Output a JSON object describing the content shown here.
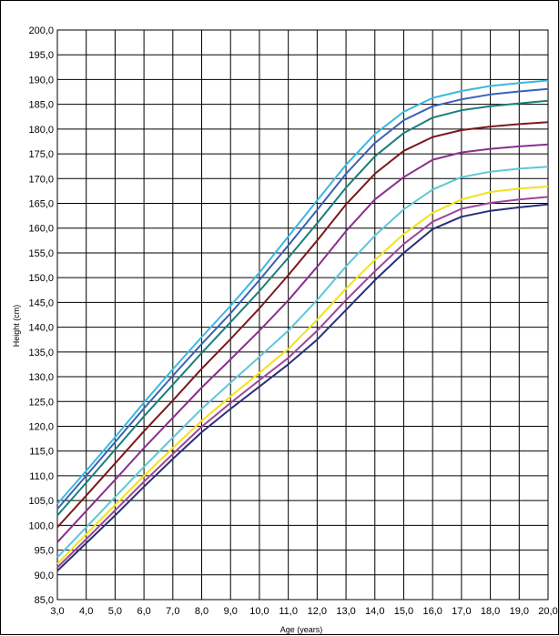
{
  "chart_data": {
    "type": "line",
    "xlabel": "Age (years)",
    "ylabel": "Height (cm)",
    "xlim": [
      3,
      20
    ],
    "ylim": [
      85,
      200
    ],
    "x_ticks": [
      "3,0",
      "4,0",
      "5,0",
      "6,0",
      "7,0",
      "8,0",
      "9,0",
      "10,0",
      "11,0",
      "12,0",
      "13,0",
      "14,0",
      "15,0",
      "16,0",
      "17,0",
      "18,0",
      "19,0",
      "20,0"
    ],
    "y_ticks": [
      "85,0",
      "90,0",
      "95,0",
      "100,0",
      "105,0",
      "110,0",
      "115,0",
      "120,0",
      "125,0",
      "130,0",
      "135,0",
      "140,0",
      "145,0",
      "150,0",
      "155,0",
      "160,0",
      "165,0",
      "170,0",
      "175,0",
      "180,0",
      "185,0",
      "190,0",
      "195,0",
      "200,0"
    ],
    "grid": true,
    "x": [
      3,
      4,
      5,
      6,
      7,
      8,
      9,
      10,
      11,
      12,
      13,
      14,
      15,
      16,
      17,
      18,
      19,
      20
    ],
    "series": [
      {
        "color": "#2a2f7a",
        "values": [
          90.8,
          96.4,
          102.0,
          107.8,
          113.4,
          118.8,
          123.5,
          128.0,
          132.5,
          137.5,
          143.5,
          149.5,
          155.0,
          159.8,
          162.3,
          163.5,
          164.2,
          164.8
        ]
      },
      {
        "color": "#a0449a",
        "values": [
          91.5,
          97.2,
          103.0,
          108.8,
          114.4,
          119.9,
          124.7,
          129.3,
          133.8,
          139.3,
          145.5,
          151.3,
          156.8,
          161.3,
          163.9,
          165.1,
          165.8,
          166.3
        ]
      },
      {
        "color": "#f2e21a",
        "values": [
          92.2,
          98.2,
          104.1,
          110.0,
          115.6,
          121.1,
          126.0,
          130.8,
          135.6,
          141.5,
          147.8,
          153.6,
          158.8,
          163.1,
          165.8,
          167.3,
          168.0,
          168.4
        ]
      },
      {
        "color": "#5fc8d6",
        "values": [
          93.5,
          99.6,
          105.7,
          111.8,
          117.7,
          123.5,
          128.8,
          134.0,
          139.3,
          145.5,
          152.3,
          158.5,
          163.8,
          167.8,
          170.3,
          171.4,
          172.0,
          172.4
        ]
      },
      {
        "color": "#8a2f8e",
        "values": [
          96.6,
          102.9,
          109.2,
          115.6,
          121.7,
          127.8,
          133.5,
          139.3,
          145.4,
          152.2,
          159.4,
          165.8,
          170.3,
          173.8,
          175.3,
          176.0,
          176.5,
          176.9
        ]
      },
      {
        "color": "#7a1a1a",
        "values": [
          99.6,
          106.0,
          112.5,
          119.0,
          125.2,
          131.6,
          137.6,
          143.8,
          150.5,
          157.5,
          164.8,
          171.0,
          175.6,
          178.4,
          179.8,
          180.5,
          181.0,
          181.4
        ]
      },
      {
        "color": "#1a7f7a",
        "values": [
          102.0,
          108.6,
          115.3,
          122.0,
          128.4,
          134.8,
          141.0,
          147.3,
          154.0,
          161.0,
          168.2,
          174.5,
          179.2,
          182.3,
          183.8,
          184.6,
          185.2,
          185.7
        ]
      },
      {
        "color": "#3a62b4",
        "values": [
          103.3,
          110.0,
          116.8,
          123.6,
          130.2,
          136.6,
          142.8,
          149.5,
          156.5,
          163.7,
          171.0,
          177.2,
          181.8,
          184.6,
          186.0,
          187.0,
          187.6,
          188.1
        ]
      },
      {
        "color": "#3bb8e2",
        "values": [
          104.3,
          111.0,
          117.8,
          124.8,
          131.5,
          138.0,
          144.3,
          151.0,
          158.3,
          165.6,
          172.8,
          179.0,
          183.5,
          186.3,
          187.7,
          188.7,
          189.3,
          189.8
        ]
      }
    ]
  }
}
